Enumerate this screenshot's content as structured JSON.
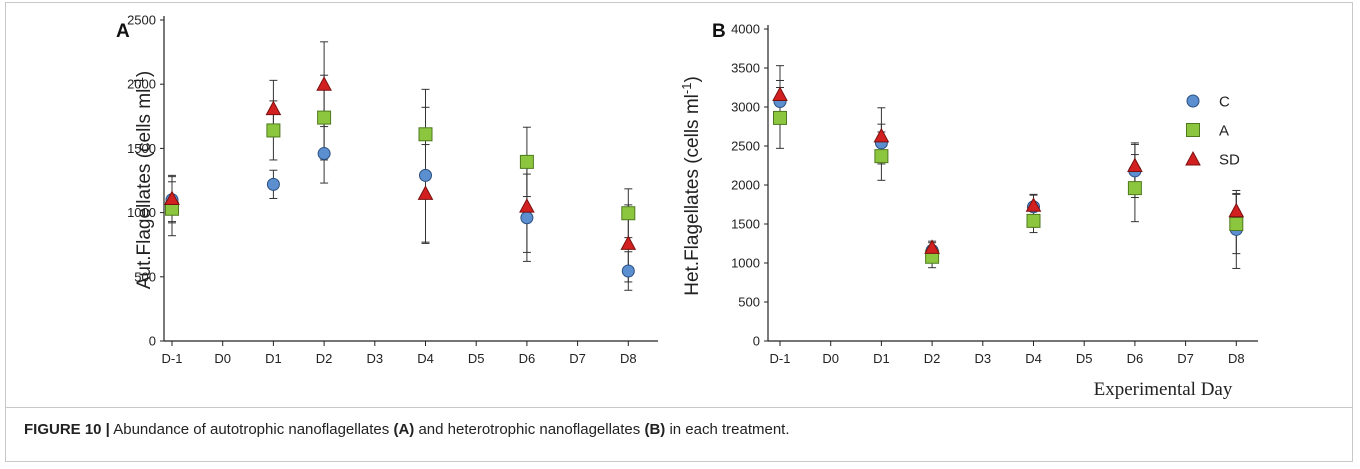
{
  "caption": {
    "label": "FIGURE 10 |",
    "text_1": " Abundance of autotrophic nanoflagellates ",
    "mark_a": "(A)",
    "text_2": " and heterotrophic nanoflagellates ",
    "mark_b": "(B)",
    "text_3": " in each treatment."
  },
  "colors": {
    "C": "#5b8fd0",
    "A": "#8cc63f",
    "SD": "#d21f1f",
    "errorbar": "#333333",
    "axis": "#222222"
  },
  "chart_data": [
    {
      "type": "scatter",
      "panel": "A",
      "title": "",
      "ylabel": "Aut.Flagellates (cells ml⁻¹)",
      "xlabel": "",
      "categories": [
        "D-1",
        "D0",
        "D1",
        "D2",
        "D3",
        "D4",
        "D5",
        "D6",
        "D7",
        "D8"
      ],
      "ylim": [
        0,
        2500
      ],
      "yticks": [
        0,
        500,
        1000,
        1500,
        2000,
        2500
      ],
      "grid": false,
      "series": [
        {
          "name": "C",
          "marker": "circle",
          "x": [
            "D-1",
            "D1",
            "D2",
            "D4",
            "D6",
            "D8"
          ],
          "values": [
            1100,
            1220,
            1460,
            1290,
            960,
            545
          ],
          "err": [
            180,
            110,
            230,
            530,
            340,
            150
          ]
        },
        {
          "name": "A",
          "marker": "square",
          "x": [
            "D-1",
            "D1",
            "D2",
            "D4",
            "D6",
            "D8"
          ],
          "values": [
            1030,
            1640,
            1740,
            1610,
            1395,
            995
          ],
          "err": [
            210,
            230,
            330,
            350,
            270,
            190
          ]
        },
        {
          "name": "SD",
          "marker": "triangle",
          "x": [
            "D-1",
            "D1",
            "D2",
            "D4",
            "D6",
            "D8"
          ],
          "values": [
            1110,
            1810,
            2000,
            1150,
            1050,
            760
          ],
          "err": [
            180,
            220,
            330,
            380,
            360,
            300
          ]
        }
      ]
    },
    {
      "type": "scatter",
      "panel": "B",
      "title": "",
      "ylabel": "Het.Flagellates (cells ml⁻¹)",
      "xlabel": "Experimental Day",
      "categories": [
        "D-1",
        "D0",
        "D1",
        "D2",
        "D3",
        "D4",
        "D5",
        "D6",
        "D7",
        "D8"
      ],
      "ylim": [
        0,
        4000
      ],
      "yticks": [
        0,
        500,
        1000,
        1500,
        2000,
        2500,
        3000,
        3500,
        4000
      ],
      "grid": false,
      "legend": "top-right",
      "series": [
        {
          "name": "C",
          "marker": "circle",
          "x": [
            "D-1",
            "D1",
            "D2",
            "D4",
            "D6",
            "D8"
          ],
          "values": [
            3070,
            2540,
            1160,
            1720,
            2180,
            1430
          ],
          "err": [
            270,
            240,
            100,
            150,
            340,
            500
          ]
        },
        {
          "name": "A",
          "marker": "square",
          "x": [
            "D-1",
            "D1",
            "D2",
            "D4",
            "D6",
            "D8"
          ],
          "values": [
            2860,
            2370,
            1080,
            1540,
            1960,
            1500
          ],
          "err": [
            390,
            310,
            140,
            150,
            430,
            380
          ]
        },
        {
          "name": "SD",
          "marker": "triangle",
          "x": [
            "D-1",
            "D1",
            "D2",
            "D4",
            "D6",
            "D8"
          ],
          "values": [
            3160,
            2630,
            1200,
            1740,
            2250,
            1670
          ],
          "err": [
            370,
            360,
            80,
            140,
            290,
            220
          ]
        }
      ]
    }
  ]
}
